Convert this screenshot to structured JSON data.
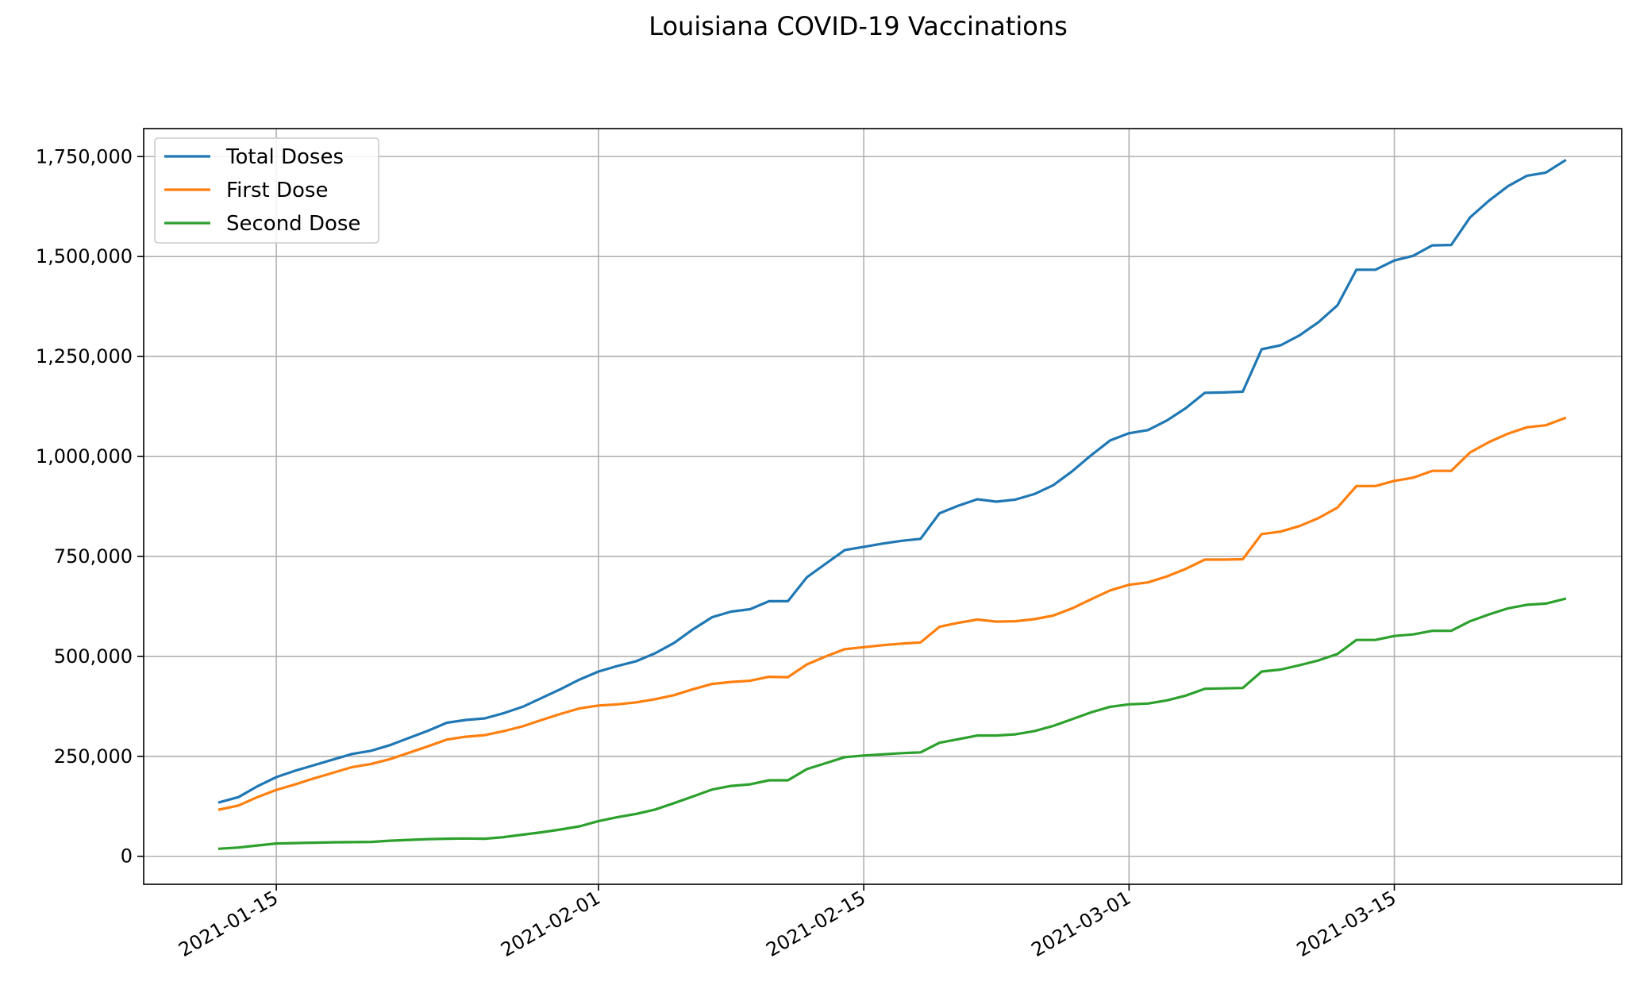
{
  "chart_data": {
    "type": "line",
    "title": "Louisiana COVID-19 Vaccinations",
    "xlabel": "",
    "ylabel": "",
    "x_start": "2021-01-12",
    "x_end": "2021-03-25",
    "xlim": [
      "2021-01-08",
      "2021-03-27"
    ],
    "ylim": [
      -70000,
      1820000
    ],
    "x_ticks": [
      "2021-01-15",
      "2021-02-01",
      "2021-02-15",
      "2021-03-01",
      "2021-03-15"
    ],
    "y_ticks": [
      0,
      250000,
      500000,
      750000,
      1000000,
      1250000,
      1500000,
      1750000
    ],
    "y_tick_labels": [
      "0",
      "250,000",
      "500,000",
      "750,000",
      "1,000,000",
      "1,250,000",
      "1,500,000",
      "1,750,000"
    ],
    "grid": true,
    "legend_position": "top-left",
    "series": [
      {
        "name": "Total Doses",
        "color": "#1f77b4",
        "values": [
          135000,
          148000,
          175000,
          198000,
          214000,
          228000,
          242000,
          256000,
          264000,
          278000,
          296000,
          314000,
          334000,
          341000,
          345000,
          358000,
          374000,
          396000,
          418000,
          442000,
          462000,
          476000,
          488000,
          508000,
          534000,
          568000,
          598000,
          612000,
          618000,
          638000,
          638000,
          698000,
          732000,
          766000,
          774000,
          782000,
          789000,
          794000,
          858000,
          877000,
          893000,
          887000,
          892000,
          906000,
          928000,
          963000,
          1003000,
          1040000,
          1058000,
          1066000,
          1090000,
          1121000,
          1159000,
          1160000,
          1162000,
          1268000,
          1278000,
          1303000,
          1336000,
          1378000,
          1467000,
          1467000,
          1490000,
          1502000,
          1528000,
          1529000,
          1598000,
          1640000,
          1676000,
          1702000,
          1710000,
          1740000
        ]
      },
      {
        "name": "First Dose",
        "color": "#ff7f0e",
        "values": [
          117000,
          127000,
          148000,
          166000,
          180000,
          195000,
          209000,
          223000,
          231000,
          243000,
          259000,
          275000,
          292000,
          299000,
          303000,
          313000,
          325000,
          341000,
          356000,
          370000,
          377000,
          380000,
          385000,
          393000,
          403000,
          418000,
          431000,
          436000,
          439000,
          449000,
          448000,
          480000,
          500000,
          518000,
          523000,
          528000,
          532000,
          535000,
          574000,
          584000,
          592000,
          587000,
          588000,
          593000,
          602000,
          620000,
          643000,
          665000,
          679000,
          685000,
          700000,
          719000,
          742000,
          742000,
          743000,
          806000,
          812000,
          826000,
          846000,
          872000,
          926000,
          926000,
          939000,
          947000,
          964000,
          964000,
          1010000,
          1036000,
          1057000,
          1073000,
          1078000,
          1096000
        ]
      },
      {
        "name": "Second Dose",
        "color": "#2ca02c",
        "values": [
          19000,
          22000,
          27000,
          32000,
          33000,
          34000,
          35000,
          35500,
          36000,
          39000,
          41000,
          43000,
          44000,
          44500,
          44000,
          48000,
          54000,
          60000,
          67000,
          75000,
          88000,
          98000,
          106000,
          117000,
          133000,
          150000,
          167000,
          176000,
          180000,
          190000,
          190000,
          218000,
          233000,
          248000,
          252000,
          255000,
          258000,
          260000,
          284000,
          293000,
          302000,
          302000,
          305000,
          313000,
          326000,
          343000,
          360000,
          374000,
          380000,
          382000,
          390000,
          402000,
          419000,
          420000,
          421000,
          462000,
          467000,
          478000,
          490000,
          506000,
          541000,
          541000,
          551000,
          555000,
          564000,
          564000,
          588000,
          605000,
          620000,
          629000,
          632000,
          644000
        ]
      }
    ]
  }
}
